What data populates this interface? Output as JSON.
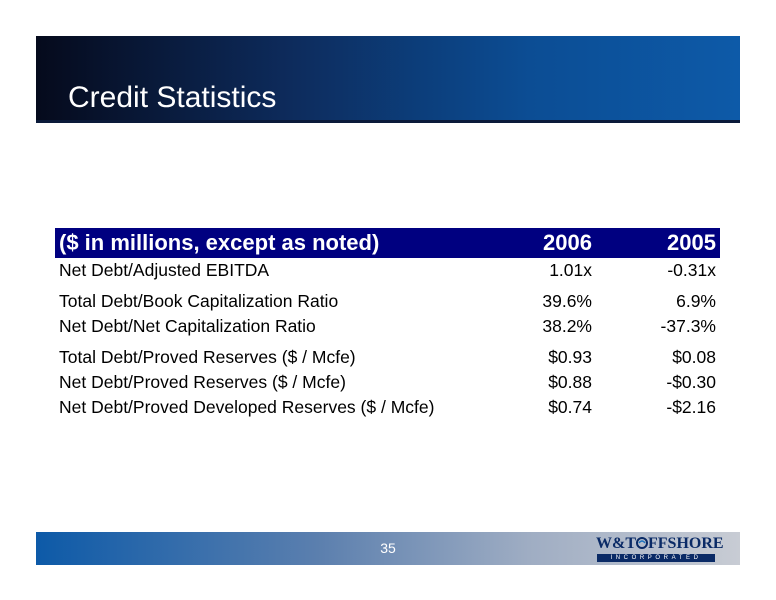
{
  "slide": {
    "title": "Credit Statistics",
    "page_number": "35"
  },
  "table": {
    "header": {
      "label": "($ in millions, except as noted)",
      "col_2006": "2006",
      "col_2005": "2005"
    },
    "rows": [
      {
        "label": "Net Debt/Adjusted EBITDA",
        "v2006": "1.01x",
        "v2005": "-0.31x"
      },
      {
        "label": "Total Debt/Book Capitalization Ratio",
        "v2006": "39.6%",
        "v2005": "6.9%"
      },
      {
        "label": "Net Debt/Net Capitalization Ratio",
        "v2006": "38.2%",
        "v2005": "-37.3%"
      },
      {
        "label": "Total Debt/Proved Reserves ($ / Mcfe)",
        "v2006": "$0.93",
        "v2005": "$0.08"
      },
      {
        "label": "Net Debt/Proved Reserves ($ / Mcfe)",
        "v2006": "$0.88",
        "v2005": "-$0.30"
      },
      {
        "label": "Net Debt/Proved Developed Reserves ($ / Mcfe)",
        "v2006": "$0.74",
        "v2005": "-$2.16"
      }
    ]
  },
  "logo": {
    "prefix": "W&T",
    "suffix": "FFSHORE",
    "subtitle": "INCORPORATED",
    "icon": "swirl-o-icon"
  },
  "colors": {
    "title_bar_dark": "#050a1c",
    "title_bar_blue": "#0d5aa8",
    "table_header": "#000080",
    "logo_navy": "#0a2a66"
  }
}
